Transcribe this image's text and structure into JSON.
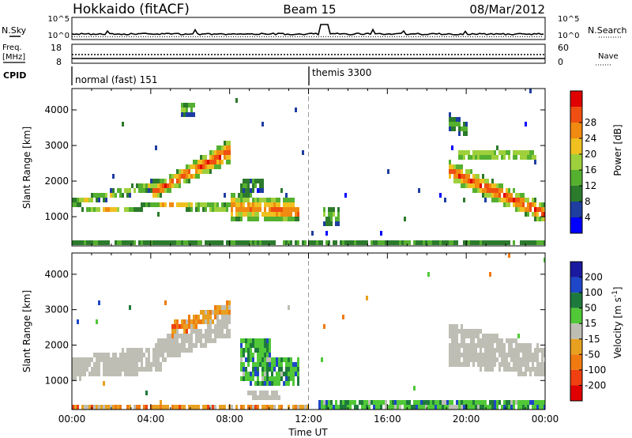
{
  "header": {
    "station": "Hokkaido (fitACF)",
    "beam": "Beam 15",
    "date": "08/Mar/2012"
  },
  "status_panels": {
    "nsky_label": "N.Sky",
    "nsearch_label": "N.Search",
    "left_ticks": [
      "10^5",
      "10^0"
    ],
    "right_ticks": [
      "10^5",
      "10^0"
    ],
    "freq_label": "Freq.",
    "freq_unit": "[MHz]",
    "freq_ticks": [
      "18",
      "8"
    ],
    "nave_label": "Nave",
    "nave_ticks": [
      "60",
      "0"
    ],
    "cpid_label": "CPID",
    "cpid_segments": [
      {
        "name": "normal (fast) 151",
        "start_hour": 0
      },
      {
        "name": "themis 3300",
        "start_hour": 12.0
      }
    ]
  },
  "colors": {
    "power_scale": [
      "#0000ff",
      "#1e3ea0",
      "#2c7a2c",
      "#55b030",
      "#9ed03c",
      "#f0c020",
      "#f08a10",
      "#ef4f10",
      "#e00000"
    ],
    "velocity_scale": [
      "#1a1aa0",
      "#1e46c8",
      "#1e7a3c",
      "#50c838",
      "#bebeb4",
      "#e8a020",
      "#f07a10",
      "#f04010",
      "#e00000"
    ],
    "ground_scatter": "#bebeb4"
  },
  "chart_data": [
    {
      "type": "heatmap",
      "name": "power",
      "xlabel": "",
      "ylabel": "Slant Range [km]",
      "x_range_hours": [
        0,
        24
      ],
      "ylim": [
        180,
        4600
      ],
      "yticks": [
        "1000",
        "2000",
        "3000",
        "4000"
      ],
      "colorbar_label": "Power [dB]",
      "colorbar_ticks": [
        "4",
        "8",
        "12",
        "16",
        "20",
        "24",
        "28"
      ],
      "colorbar_range": [
        0,
        30
      ],
      "features": [
        {
          "t0": 0.0,
          "t1": 1.5,
          "r0": 1350,
          "r1": 1550,
          "r2": 1550,
          "r3": 1750,
          "peak": 18
        },
        {
          "t0": 0.0,
          "t1": 4.5,
          "r0": 1150,
          "r1": 1300,
          "r2": 1250,
          "r3": 1450,
          "peak": 20
        },
        {
          "t0": 1.5,
          "t1": 4.5,
          "r0": 1500,
          "r1": 1850,
          "r2": 1750,
          "r3": 2150,
          "peak": 16
        },
        {
          "t0": 4.0,
          "t1": 8.0,
          "r0": 1550,
          "r1": 2600,
          "r2": 1900,
          "r3": 3250,
          "peak": 28
        },
        {
          "t0": 4.5,
          "t1": 8.5,
          "r0": 1300,
          "r1": 1200,
          "r2": 1500,
          "r3": 1400,
          "peak": 22
        },
        {
          "t0": 8.0,
          "t1": 11.2,
          "r0": 950,
          "r1": 900,
          "r2": 1700,
          "r3": 1600,
          "peak": 24
        },
        {
          "t0": 10.5,
          "t1": 11.5,
          "r0": 1000,
          "r1": 1000,
          "r2": 1400,
          "r3": 1400,
          "peak": 28
        },
        {
          "t0": 8.5,
          "t1": 9.7,
          "r0": 1750,
          "r1": 1800,
          "r2": 2150,
          "r3": 2200,
          "peak": 12
        },
        {
          "t0": 12.7,
          "t1": 13.5,
          "r0": 800,
          "r1": 800,
          "r2": 1400,
          "r3": 1400,
          "peak": 14
        },
        {
          "t0": 19.0,
          "t1": 24.0,
          "r0": 2100,
          "r1": 850,
          "r2": 2650,
          "r3": 1400,
          "peak": 28
        },
        {
          "t0": 19.5,
          "t1": 23.5,
          "r0": 2650,
          "r1": 2600,
          "r2": 3000,
          "r3": 3000,
          "peak": 18
        },
        {
          "t0": 5.5,
          "t1": 6.2,
          "r0": 3900,
          "r1": 3900,
          "r2": 4300,
          "r3": 4300,
          "peak": 14
        },
        {
          "t0": 19.0,
          "t1": 20.0,
          "r0": 3500,
          "r1": 3300,
          "r2": 4000,
          "r3": 3700,
          "peak": 12
        },
        {
          "t0": 0.0,
          "t1": 24.0,
          "r0": 220,
          "r1": 220,
          "r2": 420,
          "r3": 420,
          "peak": 10
        }
      ]
    },
    {
      "type": "heatmap",
      "name": "velocity",
      "xlabel": "Time UT",
      "ylabel": "Slant Range [km]",
      "x_range_hours": [
        0,
        24
      ],
      "xticks": [
        "00:00",
        "04:00",
        "08:00",
        "12:00",
        "16:00",
        "20:00",
        "00:00"
      ],
      "ylim": [
        180,
        4600
      ],
      "yticks": [
        "1000",
        "2000",
        "3000",
        "4000"
      ],
      "colorbar_label": "Velocity [m s^-1]",
      "colorbar_ticks": [
        "200",
        "100",
        "50",
        "15",
        "-15",
        "-50",
        "-100",
        "-200"
      ],
      "features": [
        {
          "t0": 0.0,
          "t1": 4.5,
          "r0": 1100,
          "r1": 1300,
          "r2": 1700,
          "r3": 2100,
          "class": "ground"
        },
        {
          "t0": 4.0,
          "t1": 8.0,
          "r0": 1500,
          "r1": 2300,
          "r2": 2100,
          "r3": 3300,
          "class": "ground"
        },
        {
          "t0": 5.0,
          "t1": 8.0,
          "r0": 2300,
          "r1": 2900,
          "r2": 2700,
          "r3": 3300,
          "class": "negative"
        },
        {
          "t0": 8.5,
          "t1": 10.0,
          "r0": 1000,
          "r1": 950,
          "r2": 2200,
          "r3": 2200,
          "class": "positive"
        },
        {
          "t0": 10.0,
          "t1": 11.5,
          "r0": 850,
          "r1": 850,
          "r2": 1700,
          "r3": 1700,
          "class": "positive"
        },
        {
          "t0": 19.0,
          "t1": 24.0,
          "r0": 1500,
          "r1": 1150,
          "r2": 2700,
          "r3": 2000,
          "class": "ground"
        },
        {
          "t0": 8.8,
          "t1": 10.5,
          "r0": 600,
          "r1": 500,
          "r2": 850,
          "r3": 750,
          "class": "ground"
        },
        {
          "t0": 12.5,
          "t1": 24.0,
          "r0": 200,
          "r1": 200,
          "r2": 450,
          "r3": 450,
          "class": "positive"
        },
        {
          "t0": 0.0,
          "t1": 12.0,
          "r0": 200,
          "r1": 200,
          "r2": 380,
          "r3": 380,
          "class": "negative"
        }
      ]
    }
  ]
}
